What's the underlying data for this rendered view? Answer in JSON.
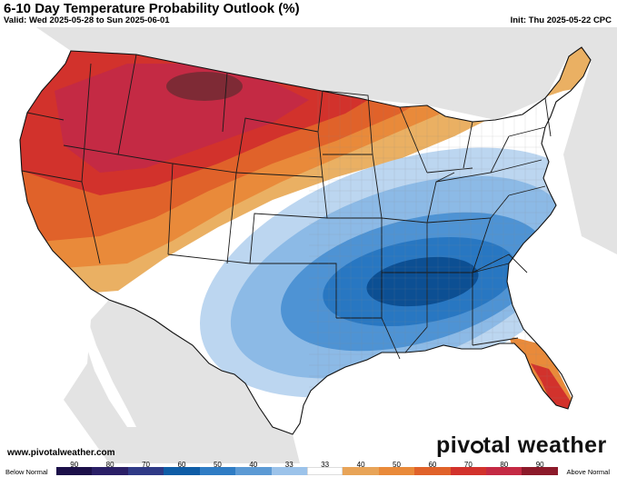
{
  "header": {
    "title": "6-10 Day Temperature Probability Outlook (%)",
    "valid": "Valid: Wed 2025-05-28 to Sun 2025-06-01",
    "init": "Init: Thu 2025-05-22 CPC"
  },
  "footer": {
    "site": "www.pivotalweather.com",
    "brand_left": "piv",
    "brand_right": "tal weather"
  },
  "legend": {
    "below_label": "Below Normal",
    "above_label": "Above Normal",
    "ticks": [
      "90",
      "80",
      "70",
      "60",
      "50",
      "40",
      "33",
      "33",
      "40",
      "50",
      "60",
      "70",
      "80",
      "90"
    ],
    "colors": [
      "#1c1049",
      "#2a1f66",
      "#2f3a86",
      "#0f5da6",
      "#2f7cc4",
      "#5c9ad4",
      "#9cc3ea",
      "#ffffff",
      "#e8a458",
      "#e98a3a",
      "#e0622a",
      "#d2322c",
      "#c42a44",
      "#8c1a2a"
    ]
  },
  "map": {
    "colors": {
      "ocean": "#ffffff",
      "foreign_land": "#e3e3e3",
      "neutral": "#ffffff",
      "above_40": "#eab063",
      "above_50": "#e98a3a",
      "above_60": "#e0622a",
      "above_70": "#d2322c",
      "above_80": "#c42a44",
      "above_90": "#7e2a35",
      "below_33": "#bcd6f0",
      "below_40": "#8cbae6",
      "below_50": "#4e93d4",
      "below_60": "#2877c2",
      "below_70": "#0c4f93"
    }
  }
}
